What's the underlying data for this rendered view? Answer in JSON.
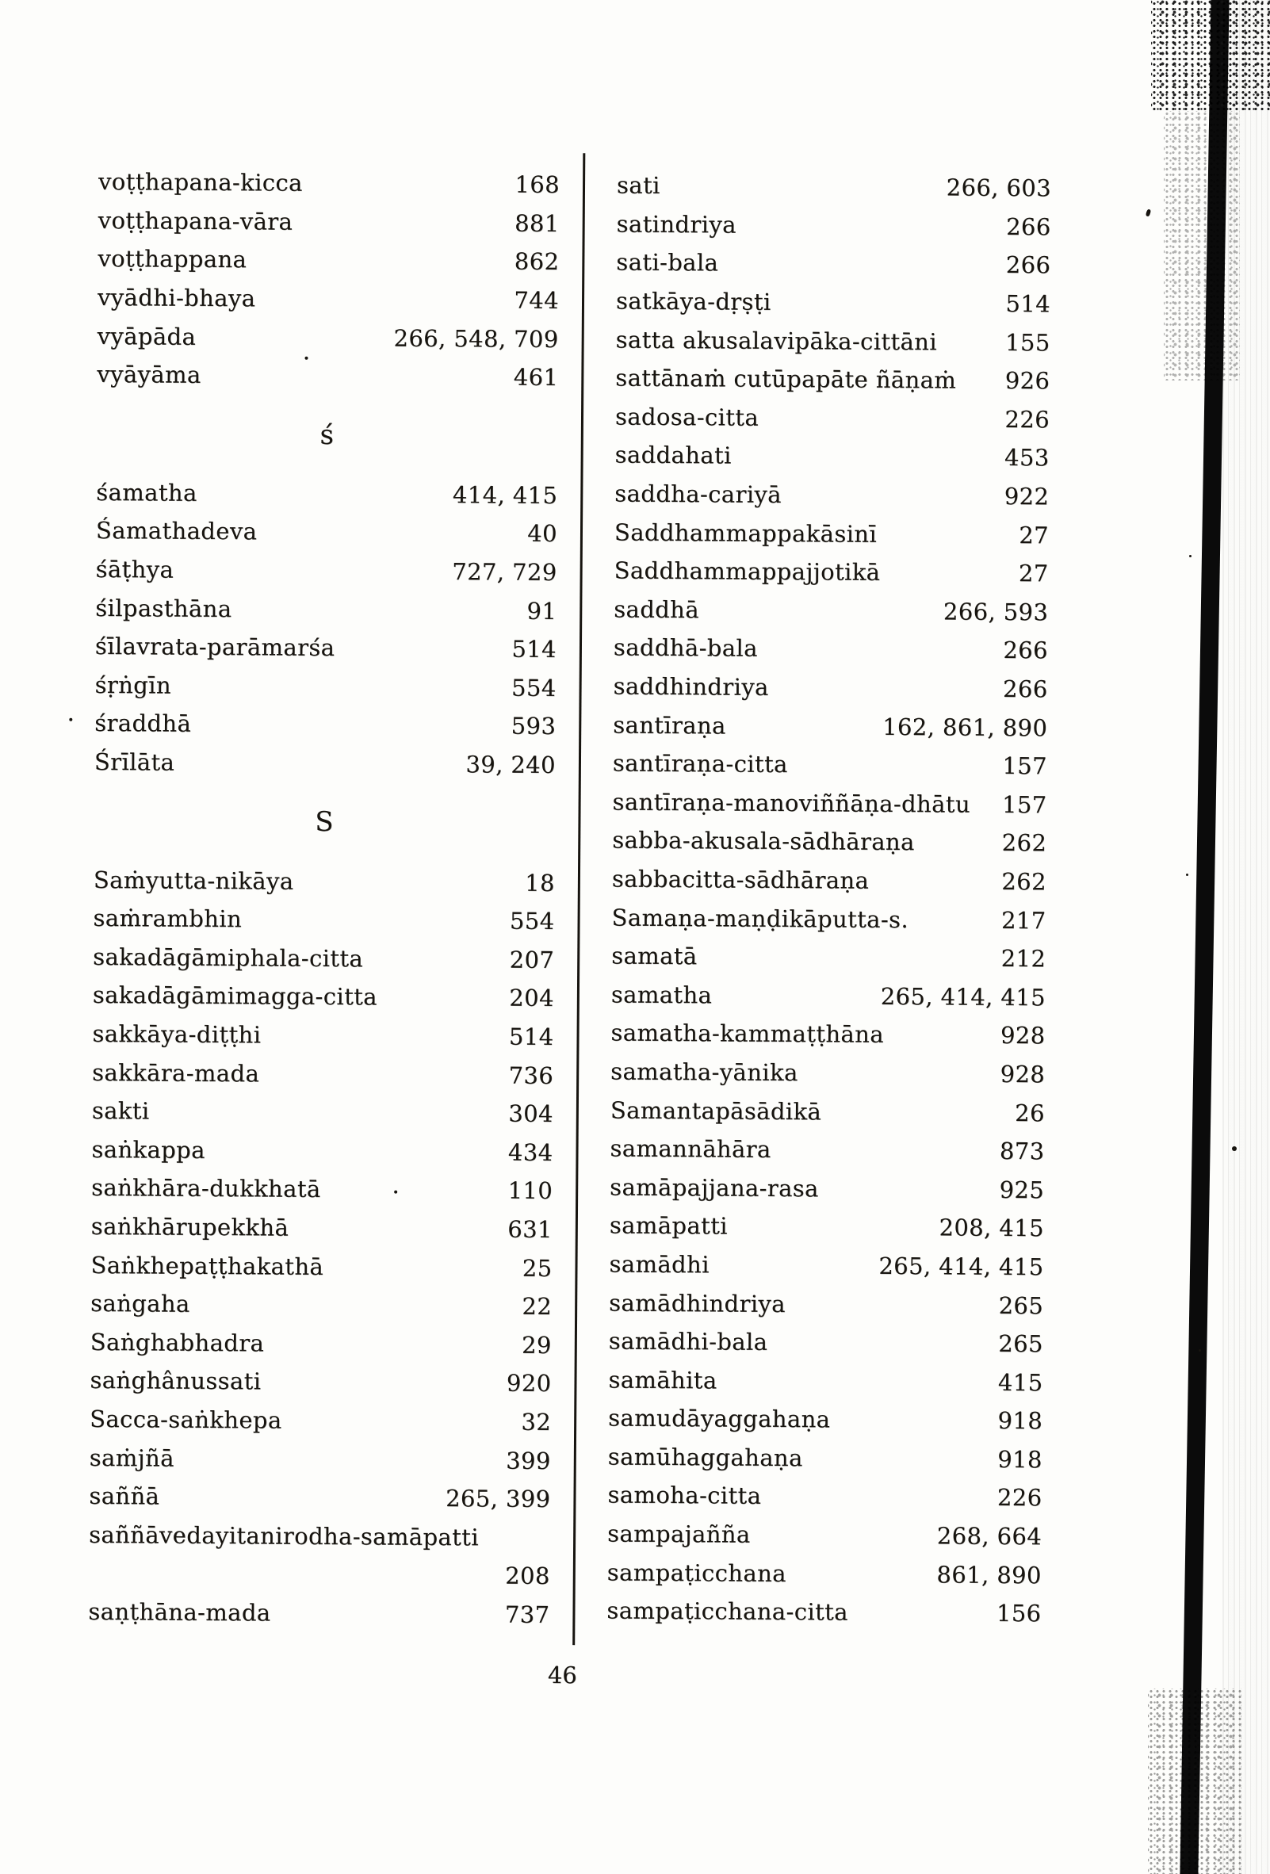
{
  "page": {
    "number": "46"
  },
  "columns": {
    "left": {
      "rows": [
        {
          "type": "entry",
          "term": "voṭṭhapana-kicca",
          "pages": "168"
        },
        {
          "type": "entry",
          "term": "voṭṭhapana-vāra",
          "pages": "881"
        },
        {
          "type": "entry",
          "term": "voṭṭhappana",
          "pages": "862"
        },
        {
          "type": "entry",
          "term": "vyādhi-bhaya",
          "pages": "744"
        },
        {
          "type": "entry",
          "term": "vyāpāda",
          "pages": "266, 548, 709"
        },
        {
          "type": "entry",
          "term": "vyāyāma",
          "pages": "461"
        },
        {
          "type": "header",
          "label": "ś"
        },
        {
          "type": "entry",
          "term": "śamatha",
          "pages": "414, 415"
        },
        {
          "type": "entry",
          "term": "Śamathadeva",
          "pages": "40"
        },
        {
          "type": "entry",
          "term": "śāṭhya",
          "pages": "727, 729"
        },
        {
          "type": "entry",
          "term": "śilpasthāna",
          "pages": "91"
        },
        {
          "type": "entry",
          "term": "śīlavrata-parāmarśa",
          "pages": "514"
        },
        {
          "type": "entry",
          "term": "śṛṅgīn",
          "pages": "554"
        },
        {
          "type": "entry",
          "term": "śraddhā",
          "pages": "593"
        },
        {
          "type": "entry",
          "term": "Śrīlāta",
          "pages": "39, 240"
        },
        {
          "type": "header",
          "label": "S"
        },
        {
          "type": "entry",
          "term": "Saṁyutta-nikāya",
          "pages": "18"
        },
        {
          "type": "entry",
          "term": "saṁrambhin",
          "pages": "554"
        },
        {
          "type": "entry",
          "term": "sakadāgāmiphala-citta",
          "pages": "207"
        },
        {
          "type": "entry",
          "term": "sakadāgāmimagga-citta",
          "pages": "204"
        },
        {
          "type": "entry",
          "term": "sakkāya-diṭṭhi",
          "pages": "514"
        },
        {
          "type": "entry",
          "term": "sakkāra-mada",
          "pages": "736"
        },
        {
          "type": "entry",
          "term": "sakti",
          "pages": "304"
        },
        {
          "type": "entry",
          "term": "saṅkappa",
          "pages": "434"
        },
        {
          "type": "entry",
          "term": "saṅkhāra-dukkhatā",
          "pages": "110"
        },
        {
          "type": "entry",
          "term": "saṅkhārupekkhā",
          "pages": "631"
        },
        {
          "type": "entry",
          "term": "Saṅkhepaṭṭhakathā",
          "pages": "25"
        },
        {
          "type": "entry",
          "term": "saṅgaha",
          "pages": "22"
        },
        {
          "type": "entry",
          "term": "Saṅghabhadra",
          "pages": "29"
        },
        {
          "type": "entry",
          "term": "saṅghânussati",
          "pages": "920"
        },
        {
          "type": "entry",
          "term": "Sacca-saṅkhepa",
          "pages": "32"
        },
        {
          "type": "entry",
          "term": "saṁjñā",
          "pages": "399"
        },
        {
          "type": "entry",
          "term": "saññā",
          "pages": "265, 399"
        },
        {
          "type": "term-only",
          "term": "saññāvedayitanirodha-samāpatti"
        },
        {
          "type": "pages-only",
          "pages": "208"
        },
        {
          "type": "entry",
          "term": "saṇṭhāna-mada",
          "pages": "737"
        }
      ]
    },
    "right": {
      "rows": [
        {
          "type": "entry",
          "term": "sati",
          "pages": "266, 603"
        },
        {
          "type": "entry",
          "term": "satindriya",
          "pages": "266"
        },
        {
          "type": "entry",
          "term": "sati-bala",
          "pages": "266"
        },
        {
          "type": "entry",
          "term": "satkāya-dṛṣṭi",
          "pages": "514"
        },
        {
          "type": "entry",
          "term": "satta akusalavipāka-cittāni",
          "pages": "155"
        },
        {
          "type": "entry",
          "term": "sattānaṁ cutūpapāte ñāṇaṁ",
          "pages": "926"
        },
        {
          "type": "entry",
          "term": "sadosa-citta",
          "pages": "226"
        },
        {
          "type": "entry",
          "term": "saddahati",
          "pages": "453"
        },
        {
          "type": "entry",
          "term": "saddha-cariyā",
          "pages": "922"
        },
        {
          "type": "entry",
          "term": "Saddhammappakāsinī",
          "pages": "27"
        },
        {
          "type": "entry",
          "term": "Saddhammappajjotikā",
          "pages": "27"
        },
        {
          "type": "entry",
          "term": "saddhā",
          "pages": "266, 593"
        },
        {
          "type": "entry",
          "term": "saddhā-bala",
          "pages": "266"
        },
        {
          "type": "entry",
          "term": "saddhindriya",
          "pages": "266"
        },
        {
          "type": "entry",
          "term": "santīraṇa",
          "pages": "162, 861, 890"
        },
        {
          "type": "entry",
          "term": "santīraṇa-citta",
          "pages": "157"
        },
        {
          "type": "entry",
          "term": "santīraṇa-manoviññāṇa-dhātu",
          "pages": "157"
        },
        {
          "type": "entry",
          "term": "sabba-akusala-sādhāraṇa",
          "pages": "262"
        },
        {
          "type": "entry",
          "term": "sabbacitta-sādhāraṇa",
          "pages": "262"
        },
        {
          "type": "entry",
          "term": "Samaṇa-maṇḍikāputta-s.",
          "pages": "217"
        },
        {
          "type": "entry",
          "term": "samatā",
          "pages": "212"
        },
        {
          "type": "entry",
          "term": "samatha",
          "pages": "265, 414, 415"
        },
        {
          "type": "entry",
          "term": "samatha-kammaṭṭhāna",
          "pages": "928"
        },
        {
          "type": "entry",
          "term": "samatha-yānika",
          "pages": "928"
        },
        {
          "type": "entry",
          "term": "Samantapāsādikā",
          "pages": "26"
        },
        {
          "type": "entry",
          "term": "samannāhāra",
          "pages": "873"
        },
        {
          "type": "entry",
          "term": "samāpajjana-rasa",
          "pages": "925"
        },
        {
          "type": "entry",
          "term": "samāpatti",
          "pages": "208, 415"
        },
        {
          "type": "entry",
          "term": "samādhi",
          "pages": "265, 414, 415"
        },
        {
          "type": "entry",
          "term": "samādhindriya",
          "pages": "265"
        },
        {
          "type": "entry",
          "term": "samādhi-bala",
          "pages": "265"
        },
        {
          "type": "entry",
          "term": "samāhita",
          "pages": "415"
        },
        {
          "type": "entry",
          "term": "samudāyaggahaṇa",
          "pages": "918"
        },
        {
          "type": "entry",
          "term": "samūhaggahaṇa",
          "pages": "918"
        },
        {
          "type": "entry",
          "term": "samoha-citta",
          "pages": "226"
        },
        {
          "type": "entry",
          "term": "sampajañña",
          "pages": "268, 664"
        },
        {
          "type": "entry",
          "term": "sampaṭicchana",
          "pages": "861, 890"
        },
        {
          "type": "entry",
          "term": "sampaṭicchana-citta",
          "pages": "156"
        }
      ]
    }
  }
}
